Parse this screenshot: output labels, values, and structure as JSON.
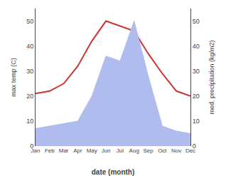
{
  "chart_data": {
    "type": "line",
    "xlabel": "date (month)",
    "ylabel": "max temp (C)",
    "y2label": "med. precipitation (kg/m2)",
    "categories": [
      "Jan",
      "Feb",
      "Mar",
      "Apr",
      "May",
      "Jun",
      "Jul",
      "Aug",
      "Sep",
      "Oct",
      "Nov",
      "Dec"
    ],
    "series": [
      {
        "type": "line",
        "color": "#cc3333",
        "values": [
          21,
          22,
          25,
          32,
          42,
          50,
          48,
          46,
          37,
          29,
          22,
          20
        ]
      },
      {
        "type": "area",
        "color": "#b0bbee",
        "axis": "y2",
        "values": [
          7,
          8,
          9,
          10,
          20,
          36,
          34,
          50,
          28,
          8,
          6,
          5
        ]
      }
    ],
    "ylim": [
      0,
      55
    ],
    "yticks": [
      0,
      10,
      20,
      30,
      40,
      50
    ],
    "y2lim": [
      0,
      55
    ],
    "y2ticks": [
      0,
      10,
      20,
      30,
      40,
      50
    ],
    "grid": false
  }
}
